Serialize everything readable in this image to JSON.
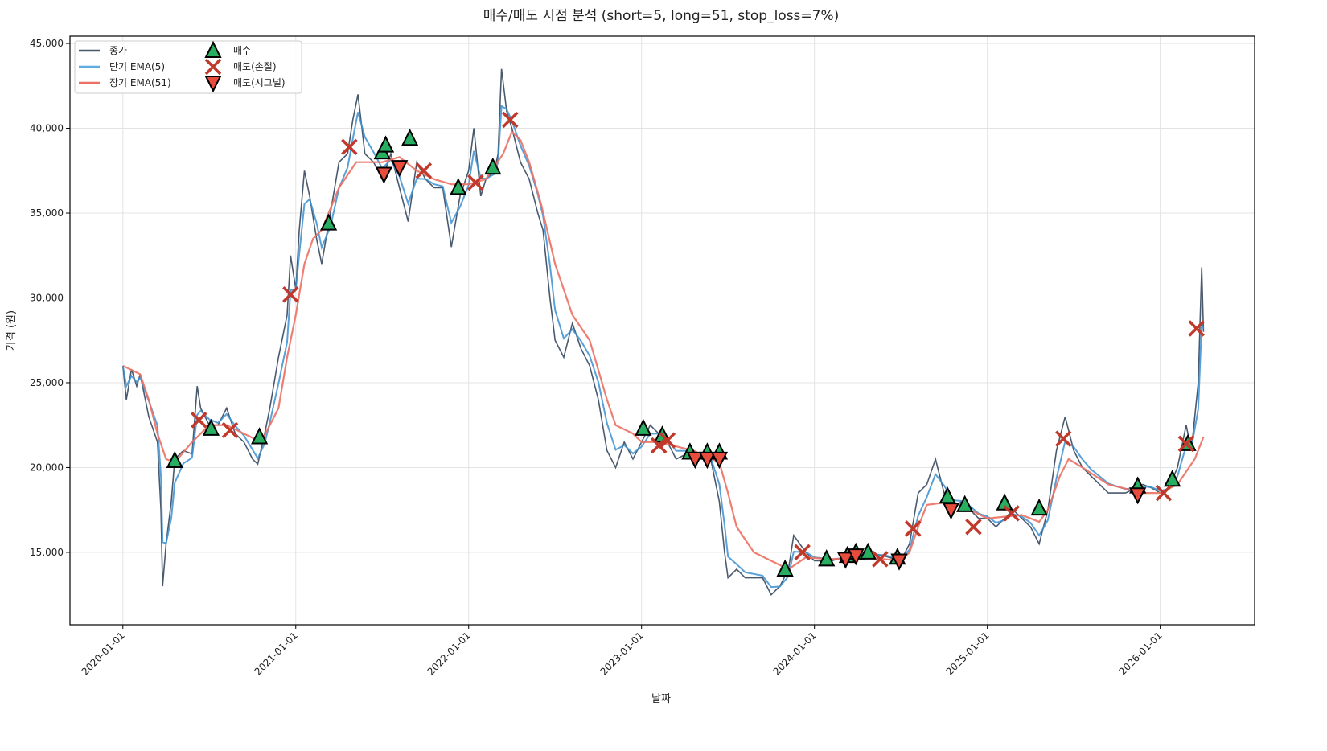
{
  "chart_data": {
    "type": "line",
    "title": "매수/매도 시점 분석 (short=5, long=51, stop_loss=7%)",
    "xlabel": "날짜",
    "ylabel": "가격 (원)",
    "xlim": [
      2019.694,
      2026.546
    ],
    "ylim": [
      10730,
      45430
    ],
    "grid": true,
    "legend_position": "top-left",
    "x_ticks": [
      {
        "x": 2020,
        "label": "2020-01-01"
      },
      {
        "x": 2021,
        "label": "2021-01-01"
      },
      {
        "x": 2022,
        "label": "2022-01-01"
      },
      {
        "x": 2023,
        "label": "2023-01-01"
      },
      {
        "x": 2024,
        "label": "2024-01-01"
      },
      {
        "x": 2025,
        "label": "2025-01-01"
      },
      {
        "x": 2026,
        "label": "2026-01-01"
      }
    ],
    "y_ticks": [
      {
        "y": 15000,
        "label": "15,000"
      },
      {
        "y": 20000,
        "label": "20,000"
      },
      {
        "y": 25000,
        "label": "25,000"
      },
      {
        "y": 30000,
        "label": "30,000"
      },
      {
        "y": 35000,
        "label": "35,000"
      },
      {
        "y": 40000,
        "label": "40,000"
      },
      {
        "y": 45000,
        "label": "45,000"
      }
    ],
    "legend": [
      {
        "label": "종가",
        "kind": "line",
        "color": "#4a5a6e"
      },
      {
        "label": "단기 EMA(5)",
        "kind": "line",
        "color": "#5dade2"
      },
      {
        "label": "장기 EMA(51)",
        "kind": "line",
        "color": "#ec7063"
      },
      {
        "label": "매수",
        "kind": "buy"
      },
      {
        "label": "매도(손절)",
        "kind": "stop"
      },
      {
        "label": "매도(시그널)",
        "kind": "signal"
      }
    ],
    "colors": {
      "close": "#4a5a6e",
      "short": "#3b8fd0",
      "long": "#ec7063",
      "buy": "#27ae60",
      "stop": "#c0392b",
      "signal": "#e74c3c"
    },
    "close": [
      [
        2020.0,
        26000
      ],
      [
        2020.02,
        24000
      ],
      [
        2020.05,
        25800
      ],
      [
        2020.08,
        24800
      ],
      [
        2020.1,
        25500
      ],
      [
        2020.15,
        23000
      ],
      [
        2020.2,
        21500
      ],
      [
        2020.22,
        17500
      ],
      [
        2020.23,
        13000
      ],
      [
        2020.25,
        15500
      ],
      [
        2020.28,
        18000
      ],
      [
        2020.3,
        20500
      ],
      [
        2020.35,
        21000
      ],
      [
        2020.4,
        20800
      ],
      [
        2020.43,
        24800
      ],
      [
        2020.45,
        23500
      ],
      [
        2020.5,
        22500
      ],
      [
        2020.55,
        22500
      ],
      [
        2020.6,
        23500
      ],
      [
        2020.65,
        22000
      ],
      [
        2020.7,
        21500
      ],
      [
        2020.75,
        20500
      ],
      [
        2020.78,
        20200
      ],
      [
        2020.82,
        22000
      ],
      [
        2020.85,
        23500
      ],
      [
        2020.9,
        26500
      ],
      [
        2020.95,
        29000
      ],
      [
        2020.97,
        32500
      ],
      [
        2021.0,
        30500
      ],
      [
        2021.02,
        34000
      ],
      [
        2021.05,
        37500
      ],
      [
        2021.08,
        36000
      ],
      [
        2021.12,
        33500
      ],
      [
        2021.15,
        32000
      ],
      [
        2021.2,
        35000
      ],
      [
        2021.25,
        38000
      ],
      [
        2021.3,
        38500
      ],
      [
        2021.33,
        40500
      ],
      [
        2021.36,
        42000
      ],
      [
        2021.4,
        38500
      ],
      [
        2021.45,
        38000
      ],
      [
        2021.5,
        37000
      ],
      [
        2021.55,
        38500
      ],
      [
        2021.6,
        36500
      ],
      [
        2021.65,
        34500
      ],
      [
        2021.7,
        38000
      ],
      [
        2021.75,
        37000
      ],
      [
        2021.8,
        36500
      ],
      [
        2021.85,
        36500
      ],
      [
        2021.9,
        33000
      ],
      [
        2021.95,
        36000
      ],
      [
        2022.0,
        37500
      ],
      [
        2022.03,
        40000
      ],
      [
        2022.07,
        36000
      ],
      [
        2022.1,
        37000
      ],
      [
        2022.15,
        37500
      ],
      [
        2022.17,
        38500
      ],
      [
        2022.19,
        43500
      ],
      [
        2022.22,
        41000
      ],
      [
        2022.25,
        40000
      ],
      [
        2022.3,
        38000
      ],
      [
        2022.35,
        37000
      ],
      [
        2022.4,
        35000
      ],
      [
        2022.43,
        34000
      ],
      [
        2022.47,
        30000
      ],
      [
        2022.5,
        27500
      ],
      [
        2022.55,
        26500
      ],
      [
        2022.6,
        28500
      ],
      [
        2022.65,
        27000
      ],
      [
        2022.7,
        26000
      ],
      [
        2022.75,
        24000
      ],
      [
        2022.8,
        21000
      ],
      [
        2022.85,
        20000
      ],
      [
        2022.9,
        21500
      ],
      [
        2022.95,
        20500
      ],
      [
        2023.0,
        21500
      ],
      [
        2023.05,
        22500
      ],
      [
        2023.1,
        22000
      ],
      [
        2023.15,
        21500
      ],
      [
        2023.2,
        20500
      ],
      [
        2023.3,
        21000
      ],
      [
        2023.35,
        20500
      ],
      [
        2023.4,
        20500
      ],
      [
        2023.45,
        18000
      ],
      [
        2023.48,
        15000
      ],
      [
        2023.5,
        13500
      ],
      [
        2023.55,
        14000
      ],
      [
        2023.6,
        13500
      ],
      [
        2023.7,
        13500
      ],
      [
        2023.75,
        12500
      ],
      [
        2023.8,
        13000
      ],
      [
        2023.85,
        14000
      ],
      [
        2023.88,
        16000
      ],
      [
        2023.95,
        15000
      ],
      [
        2024.0,
        14500
      ],
      [
        2024.1,
        14500
      ],
      [
        2024.2,
        14800
      ],
      [
        2024.3,
        15000
      ],
      [
        2024.4,
        14800
      ],
      [
        2024.5,
        14500
      ],
      [
        2024.55,
        15500
      ],
      [
        2024.6,
        18500
      ],
      [
        2024.65,
        19000
      ],
      [
        2024.7,
        20500
      ],
      [
        2024.75,
        18500
      ],
      [
        2024.8,
        17500
      ],
      [
        2024.85,
        18000
      ],
      [
        2024.9,
        17500
      ],
      [
        2024.95,
        17000
      ],
      [
        2025.0,
        17000
      ],
      [
        2025.05,
        16500
      ],
      [
        2025.1,
        17000
      ],
      [
        2025.15,
        17500
      ],
      [
        2025.2,
        17000
      ],
      [
        2025.25,
        16500
      ],
      [
        2025.3,
        15500
      ],
      [
        2025.35,
        17500
      ],
      [
        2025.4,
        21000
      ],
      [
        2025.45,
        23000
      ],
      [
        2025.5,
        21000
      ],
      [
        2025.55,
        20000
      ],
      [
        2025.6,
        19500
      ],
      [
        2025.7,
        18500
      ],
      [
        2025.8,
        18500
      ],
      [
        2025.9,
        19000
      ],
      [
        2025.95,
        18800
      ],
      [
        2026.0,
        18500
      ],
      [
        2026.05,
        18800
      ],
      [
        2026.1,
        20000
      ],
      [
        2026.15,
        22500
      ],
      [
        2026.18,
        21000
      ],
      [
        2026.22,
        25000
      ],
      [
        2026.24,
        31800
      ],
      [
        2026.25,
        28000
      ]
    ],
    "long_ema": [
      [
        2020.0,
        26000
      ],
      [
        2020.1,
        25500
      ],
      [
        2020.15,
        24000
      ],
      [
        2020.2,
        22000
      ],
      [
        2020.25,
        20500
      ],
      [
        2020.3,
        20300
      ],
      [
        2020.4,
        21500
      ],
      [
        2020.5,
        22500
      ],
      [
        2020.6,
        22500
      ],
      [
        2020.7,
        22000
      ],
      [
        2020.8,
        21500
      ],
      [
        2020.9,
        23500
      ],
      [
        2020.95,
        26500
      ],
      [
        2021.0,
        29000
      ],
      [
        2021.05,
        32000
      ],
      [
        2021.1,
        33500
      ],
      [
        2021.15,
        34000
      ],
      [
        2021.25,
        36500
      ],
      [
        2021.35,
        38000
      ],
      [
        2021.5,
        38000
      ],
      [
        2021.6,
        38300
      ],
      [
        2021.7,
        37500
      ],
      [
        2021.8,
        37000
      ],
      [
        2021.9,
        36700
      ],
      [
        2022.0,
        36700
      ],
      [
        2022.1,
        37000
      ],
      [
        2022.2,
        38500
      ],
      [
        2022.25,
        39800
      ],
      [
        2022.3,
        39300
      ],
      [
        2022.35,
        38000
      ],
      [
        2022.42,
        35500
      ],
      [
        2022.5,
        32000
      ],
      [
        2022.6,
        29000
      ],
      [
        2022.7,
        27500
      ],
      [
        2022.8,
        24000
      ],
      [
        2022.85,
        22500
      ],
      [
        2022.95,
        22000
      ],
      [
        2023.0,
        21500
      ],
      [
        2023.1,
        21500
      ],
      [
        2023.3,
        21000
      ],
      [
        2023.45,
        20300
      ],
      [
        2023.5,
        18500
      ],
      [
        2023.55,
        16500
      ],
      [
        2023.65,
        15000
      ],
      [
        2023.75,
        14500
      ],
      [
        2023.85,
        14000
      ],
      [
        2023.95,
        14700
      ],
      [
        2024.1,
        14600
      ],
      [
        2024.3,
        14700
      ],
      [
        2024.5,
        14500
      ],
      [
        2024.55,
        15000
      ],
      [
        2024.6,
        16500
      ],
      [
        2024.65,
        17800
      ],
      [
        2024.8,
        18000
      ],
      [
        2024.9,
        17500
      ],
      [
        2025.0,
        17000
      ],
      [
        2025.2,
        17200
      ],
      [
        2025.3,
        16800
      ],
      [
        2025.35,
        17500
      ],
      [
        2025.42,
        19500
      ],
      [
        2025.47,
        20500
      ],
      [
        2025.55,
        20000
      ],
      [
        2025.7,
        19000
      ],
      [
        2025.9,
        18500
      ],
      [
        2026.0,
        18500
      ],
      [
        2026.1,
        19000
      ],
      [
        2026.2,
        20500
      ],
      [
        2026.25,
        21800
      ]
    ],
    "buy": [
      [
        2020.3,
        20400
      ],
      [
        2020.51,
        22300
      ],
      [
        2020.79,
        21800
      ],
      [
        2021.19,
        34400
      ],
      [
        2021.5,
        38600
      ],
      [
        2021.52,
        39000
      ],
      [
        2021.66,
        39400
      ],
      [
        2021.94,
        36500
      ],
      [
        2022.14,
        37700
      ],
      [
        2023.01,
        22300
      ],
      [
        2023.12,
        21900
      ],
      [
        2023.28,
        20900
      ],
      [
        2023.38,
        20900
      ],
      [
        2023.45,
        20900
      ],
      [
        2023.83,
        14000
      ],
      [
        2024.07,
        14600
      ],
      [
        2024.19,
        14800
      ],
      [
        2024.24,
        15000
      ],
      [
        2024.31,
        15000
      ],
      [
        2024.48,
        14700
      ],
      [
        2024.77,
        18300
      ],
      [
        2024.87,
        17800
      ],
      [
        2025.1,
        17900
      ],
      [
        2025.3,
        17600
      ],
      [
        2025.87,
        18900
      ],
      [
        2026.07,
        19300
      ],
      [
        2026.16,
        21400
      ]
    ],
    "sell_stop": [
      [
        2020.44,
        22800
      ],
      [
        2020.62,
        22200
      ],
      [
        2020.97,
        30200
      ],
      [
        2021.31,
        38900
      ],
      [
        2021.74,
        37500
      ],
      [
        2022.04,
        36800
      ],
      [
        2022.24,
        40500
      ],
      [
        2023.1,
        21300
      ],
      [
        2023.15,
        21600
      ],
      [
        2023.93,
        15000
      ],
      [
        2024.38,
        14600
      ],
      [
        2024.57,
        16400
      ],
      [
        2024.92,
        16500
      ],
      [
        2025.14,
        17300
      ],
      [
        2025.44,
        21700
      ],
      [
        2026.02,
        18500
      ],
      [
        2026.15,
        21400
      ],
      [
        2026.21,
        28200
      ]
    ],
    "sell_signal": [
      [
        2021.51,
        37300
      ],
      [
        2021.6,
        37700
      ],
      [
        2023.31,
        20500
      ],
      [
        2023.38,
        20500
      ],
      [
        2023.45,
        20500
      ],
      [
        2024.18,
        14600
      ],
      [
        2024.24,
        14800
      ],
      [
        2024.49,
        14500
      ],
      [
        2024.79,
        17500
      ],
      [
        2025.87,
        18400
      ]
    ]
  }
}
